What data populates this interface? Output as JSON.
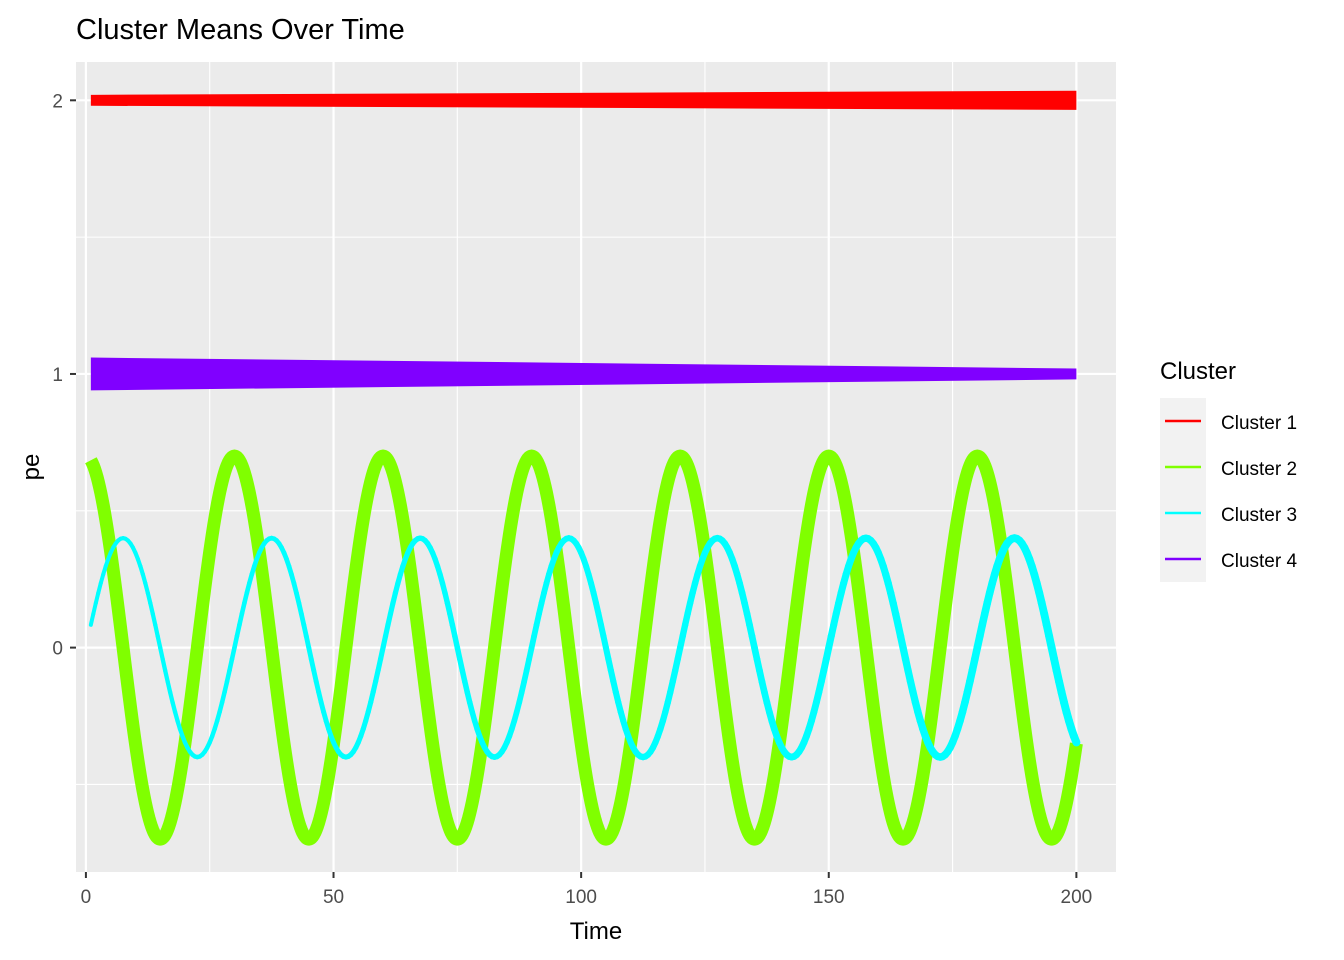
{
  "chart_data": {
    "type": "line",
    "title": "Cluster Means Over Time",
    "xlabel": "Time",
    "ylabel": "pe",
    "xlim": [
      -2,
      208
    ],
    "ylim": [
      -0.82,
      2.14
    ],
    "x_ticks": [
      0,
      50,
      100,
      150,
      200
    ],
    "x_tick_labels": [
      "0",
      "50",
      "100",
      "150",
      "200"
    ],
    "y_ticks": [
      0,
      1,
      2
    ],
    "y_tick_labels": [
      "0",
      "1",
      "2"
    ],
    "grid": true,
    "legend": {
      "title": "Cluster",
      "placement": "right",
      "entries": [
        "Cluster 1",
        "Cluster 2",
        "Cluster 3",
        "Cluster 4"
      ]
    },
    "series": [
      {
        "name": "Cluster 1",
        "color": "#FF0000",
        "kind": "flat-band",
        "x_range": [
          1,
          200
        ],
        "center": 2.0,
        "half_width_start": 0.02,
        "half_width_end": 0.035
      },
      {
        "name": "Cluster 2",
        "color": "#80FF00",
        "kind": "sine",
        "x_range": [
          1,
          200
        ],
        "amplitude": 0.7,
        "period": 30,
        "peak_x": 0,
        "offset": 0
      },
      {
        "name": "Cluster 3",
        "color": "#00FFFF",
        "kind": "sine",
        "x_range": [
          1,
          200
        ],
        "amplitude": 0.4,
        "period": 30,
        "peak_x": 7.5,
        "offset": 0
      },
      {
        "name": "Cluster 4",
        "color": "#8000FF",
        "kind": "flat-band",
        "x_range": [
          1,
          200
        ],
        "center": 1.0,
        "half_width_start": 0.06,
        "half_width_end": 0.02
      }
    ]
  }
}
